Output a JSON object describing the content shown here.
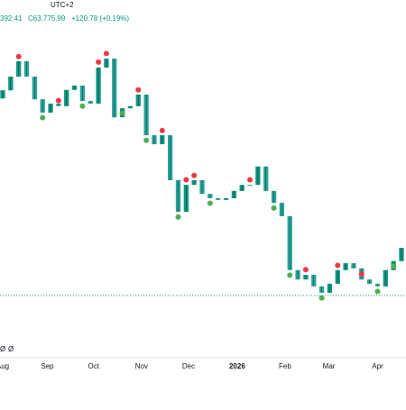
{
  "chart_data": {
    "type": "candlestick",
    "header": {
      "timezone": "UTC+2",
      "last_value": "392.41",
      "close": "C63,775.99",
      "change": "+120.78 (+0.19%)"
    },
    "status_marks": [
      "Ø",
      "Ø"
    ],
    "opens": [
      107000,
      108900,
      112100,
      115700,
      112100,
      106800,
      103700,
      105800,
      105200,
      109000,
      110000,
      106400,
      105800,
      114200,
      116300,
      102600,
      104700,
      105200,
      107900,
      98400,
      96300,
      98400,
      87900,
      80500,
      86800,
      87900,
      84700,
      83700,
      83300,
      83700,
      85400,
      86800,
      86800,
      91100,
      85400,
      82600,
      79500,
      66900,
      64700,
      65800,
      63100,
      61600,
      63700,
      66900,
      68500,
      67300,
      64700,
      63700,
      63100,
      66900,
      69000
    ],
    "closes": [
      108900,
      112100,
      115700,
      112100,
      106800,
      103700,
      105800,
      105200,
      109000,
      110000,
      106400,
      105800,
      114200,
      116300,
      102600,
      104700,
      105200,
      107900,
      98400,
      96300,
      98400,
      87900,
      80500,
      86800,
      87900,
      84700,
      83700,
      83300,
      83700,
      85400,
      86800,
      86800,
      91100,
      85400,
      82600,
      79500,
      66900,
      64700,
      65800,
      63100,
      61600,
      63700,
      66900,
      68500,
      67300,
      64700,
      63700,
      63100,
      66900,
      69000,
      72100
    ],
    "up_color": "#089981",
    "down_color": "#26a69a",
    "sell_markers": {
      "color": "#f23645",
      "x": [
        2,
        7,
        12,
        13,
        17,
        20,
        23,
        24,
        31,
        38,
        42,
        45
      ],
      "values": [
        116800,
        106500,
        115500,
        117500,
        109000,
        99500,
        88000,
        89000,
        88000,
        67000,
        68000,
        66000
      ]
    },
    "buy_markers": {
      "color": "#4caf50",
      "x": [
        5,
        10,
        15,
        18,
        22,
        26,
        34,
        36,
        40,
        47,
        49
      ],
      "values": [
        102500,
        105200,
        103500,
        97200,
        79300,
        82500,
        81400,
        65700,
        60400,
        61900,
        67800
      ]
    },
    "price_line": {
      "value": 60950,
      "color": "#089981"
    },
    "ylim": [
      50000,
      130000
    ],
    "xlim": [
      0,
      50
    ],
    "xticks": [
      {
        "value": 0,
        "label": "Aug"
      },
      {
        "value": 5.6,
        "label": "Sep"
      },
      {
        "value": 11.4,
        "label": "Oct"
      },
      {
        "value": 17.4,
        "label": "Nov"
      },
      {
        "value": 23.3,
        "label": "Dec"
      },
      {
        "value": 29.4,
        "label": "2026"
      },
      {
        "value": 35.4,
        "label": "Feb"
      },
      {
        "value": 40.9,
        "label": "Mar"
      },
      {
        "value": 47,
        "label": "Apr"
      }
    ]
  }
}
